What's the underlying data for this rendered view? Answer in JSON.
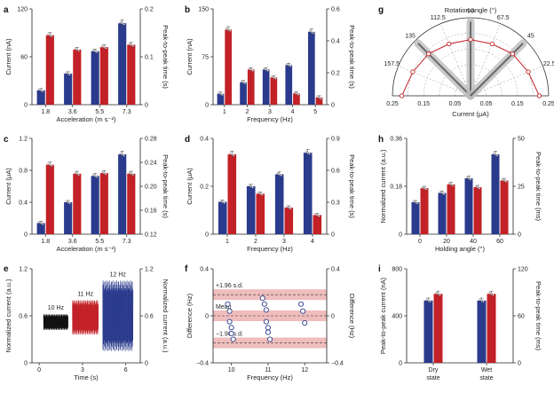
{
  "colors": {
    "blue": "#2a3a8c",
    "red": "#c22127",
    "band": "#e9a7a7",
    "point": "#2a3a8c"
  },
  "chart_data": [
    {
      "panel": "a",
      "type": "bar",
      "categories": [
        "1.8",
        "3.6",
        "5.5",
        "7.3"
      ],
      "xlabel": "Acceleration (m s⁻²)",
      "ylabel_left": "Current (nA)",
      "ylabel_right": "Peak-to-peak time (s)",
      "yticks_left": [
        "0",
        "60",
        "120"
      ],
      "yticks_right": [
        "0",
        "0.1",
        "0.2"
      ],
      "ylim_left": [
        0,
        120
      ],
      "ylim_right": [
        0,
        0.2
      ],
      "series": [
        {
          "axis": "left",
          "color": "blue",
          "values": [
            18,
            39,
            67,
            102
          ]
        },
        {
          "axis": "right",
          "color": "red",
          "values": [
            0.145,
            0.115,
            0.12,
            0.125
          ]
        }
      ]
    },
    {
      "panel": "b",
      "type": "bar",
      "categories": [
        "1",
        "2",
        "3",
        "4",
        "5"
      ],
      "xlabel": "Frequency (Hz)",
      "ylabel_left": "Current (nA)",
      "ylabel_right": "Peak-to-peak time (s)",
      "yticks_left": [
        "0",
        "75",
        "150"
      ],
      "yticks_right": [
        "0",
        "0.2",
        "0.4",
        "0.6"
      ],
      "ylim_left": [
        0,
        150
      ],
      "ylim_right": [
        0,
        0.6
      ],
      "series": [
        {
          "axis": "left",
          "color": "blue",
          "values": [
            17,
            35,
            55,
            62,
            114
          ]
        },
        {
          "axis": "right",
          "color": "red",
          "values": [
            0.47,
            0.22,
            0.17,
            0.07,
            0.045
          ]
        }
      ]
    },
    {
      "panel": "c",
      "type": "bar",
      "categories": [
        "1.8",
        "3.6",
        "5.5",
        "7.3"
      ],
      "xlabel": "Acceleration (m s⁻²)",
      "ylabel_left": "Current (μA)",
      "ylabel_right": "Peak-to-peak time (s)",
      "yticks_left": [
        "0",
        "0.4",
        "0.8",
        "1.2"
      ],
      "yticks_right": [
        "0.12",
        "0.16",
        "0.20",
        "0.24",
        "0.28"
      ],
      "ylim_left": [
        0,
        1.2
      ],
      "ylim_right": [
        0.12,
        0.28
      ],
      "series": [
        {
          "axis": "left",
          "color": "blue",
          "values": [
            0.14,
            0.4,
            0.73,
            1.0
          ]
        },
        {
          "axis": "right",
          "color": "red",
          "values": [
            0.236,
            0.221,
            0.222,
            0.221
          ]
        }
      ]
    },
    {
      "panel": "d",
      "type": "bar",
      "categories": [
        "1",
        "2",
        "3",
        "4"
      ],
      "xlabel": "Frequency (Hz)",
      "ylabel_left": "Current (μA)",
      "ylabel_right": "Peak-to-peak time (s)",
      "yticks_left": [
        "0",
        "0.2",
        "0.4"
      ],
      "yticks_right": [
        "0",
        "0.3",
        "0.6",
        "0.9"
      ],
      "ylim_left": [
        0,
        0.4
      ],
      "ylim_right": [
        0,
        0.9
      ],
      "series": [
        {
          "axis": "left",
          "color": "blue",
          "values": [
            0.135,
            0.2,
            0.25,
            0.34
          ]
        },
        {
          "axis": "right",
          "color": "red",
          "values": [
            0.75,
            0.38,
            0.25,
            0.18
          ]
        }
      ]
    },
    {
      "panel": "h",
      "type": "bar",
      "categories": [
        "0",
        "20",
        "40",
        "60"
      ],
      "xlabel": "Holding angle (°)",
      "ylabel_left": "Normalized current (a.u.)",
      "ylabel_right": "Peak-to-peak time (ms)",
      "yticks_left": [
        "0",
        "0.18",
        "0.36"
      ],
      "yticks_right": [
        "0",
        "25",
        "50"
      ],
      "ylim_left": [
        0,
        0.36
      ],
      "ylim_right": [
        0,
        50
      ],
      "series": [
        {
          "axis": "left",
          "color": "blue",
          "values": [
            0.12,
            0.155,
            0.21,
            0.3
          ]
        },
        {
          "axis": "right",
          "color": "red",
          "values": [
            24,
            26,
            24.5,
            28
          ]
        }
      ]
    },
    {
      "panel": "i",
      "type": "bar",
      "categories": [
        "Dry state",
        "Wet state"
      ],
      "xlabel": "",
      "ylabel_left": "Peak-to-peak current (nA)",
      "ylabel_right": "Peak-to-peak time (ms)",
      "yticks_left": [
        "0",
        "400",
        "800"
      ],
      "yticks_right": [
        "0",
        "60",
        "120"
      ],
      "ylim_left": [
        0,
        800
      ],
      "ylim_right": [
        0,
        120
      ],
      "series": [
        {
          "axis": "left",
          "color": "blue",
          "values": [
            530,
            530
          ]
        },
        {
          "axis": "right",
          "color": "red",
          "values": [
            88,
            88
          ]
        }
      ]
    },
    {
      "panel": "e",
      "type": "line",
      "xlabel": "Time (s)",
      "ylabel_left": "Normalized current (a.u.)",
      "ylabel_right": "Normalized current (a.u.)",
      "xticks": [
        "0",
        "3",
        "6"
      ],
      "yticks_left": [
        "0",
        "0.6",
        "1.2"
      ],
      "yticks_right": [
        "0",
        "0.6",
        "1.2"
      ],
      "xlim": [
        -0.5,
        7
      ],
      "ylim": [
        0,
        1.2
      ],
      "segments": [
        {
          "name": "10 Hz",
          "color": "#111111",
          "t": [
            0.3,
            2.0
          ],
          "center": 0.52,
          "amp": 0.1
        },
        {
          "name": "11 Hz",
          "color": "#c22127",
          "t": [
            2.3,
            4.1
          ],
          "center": 0.58,
          "amp": 0.22
        },
        {
          "name": "12 Hz",
          "color": "#2a3a8c",
          "t": [
            4.4,
            6.5
          ],
          "center": 0.6,
          "amp": 0.45
        }
      ]
    },
    {
      "panel": "f",
      "type": "scatter",
      "xlabel": "Frequency (Hz)",
      "ylabel_left": "Difference (Hz)",
      "ylabel_right": "Difference (Hz)",
      "xticks": [
        "10",
        "11",
        "12"
      ],
      "yticks_left": [
        "−0.4",
        "0",
        "0.4"
      ],
      "yticks_right": [
        "−0.4",
        "0",
        "0.4"
      ],
      "xlim": [
        9.5,
        12.6
      ],
      "ylim": [
        -0.4,
        0.4
      ],
      "mean": 0.0,
      "plus196": 0.18,
      "minus196": -0.23,
      "annotations": [
        "+1.96 s.d.",
        "Mean",
        "−1.96 s.d."
      ],
      "points": [
        [
          9.9,
          0.1
        ],
        [
          9.95,
          0.04
        ],
        [
          9.95,
          -0.05
        ],
        [
          10.0,
          -0.1
        ],
        [
          10.0,
          -0.15
        ],
        [
          10.05,
          -0.2
        ],
        [
          10.85,
          0.15
        ],
        [
          10.9,
          0.1
        ],
        [
          10.95,
          0.05
        ],
        [
          10.95,
          -0.05
        ],
        [
          11.0,
          -0.1
        ],
        [
          11.0,
          -0.14
        ],
        [
          11.05,
          -0.2
        ],
        [
          11.9,
          0.1
        ],
        [
          11.95,
          0.04
        ],
        [
          12.0,
          -0.06
        ]
      ]
    },
    {
      "panel": "g",
      "type": "polar",
      "title": "Rotation angle (°)",
      "xlabel": "Current (μA)",
      "angle_labels": [
        "22.5",
        "45",
        "67.5",
        "90",
        "112.5",
        "135",
        "157.5"
      ],
      "radial_labels": [
        "0.25",
        "0.15",
        "0.05",
        "0.05",
        "0.15",
        "0.25"
      ],
      "rmax": 0.25,
      "points": [
        [
          180,
          0.22
        ],
        [
          157.5,
          0.2
        ],
        [
          135,
          0.19
        ],
        [
          112.5,
          0.18
        ],
        [
          90,
          0.18
        ],
        [
          67.5,
          0.18
        ],
        [
          45,
          0.19
        ],
        [
          22.5,
          0.2
        ],
        [
          0,
          0.22
        ]
      ]
    }
  ],
  "panels": {
    "a": "a",
    "b": "b",
    "c": "c",
    "d": "d",
    "e": "e",
    "f": "f",
    "g": "g",
    "h": "h",
    "i": "i"
  },
  "panel_e_labels": {
    "s1": "10 Hz",
    "s2": "11 Hz",
    "s3": "12 Hz"
  }
}
